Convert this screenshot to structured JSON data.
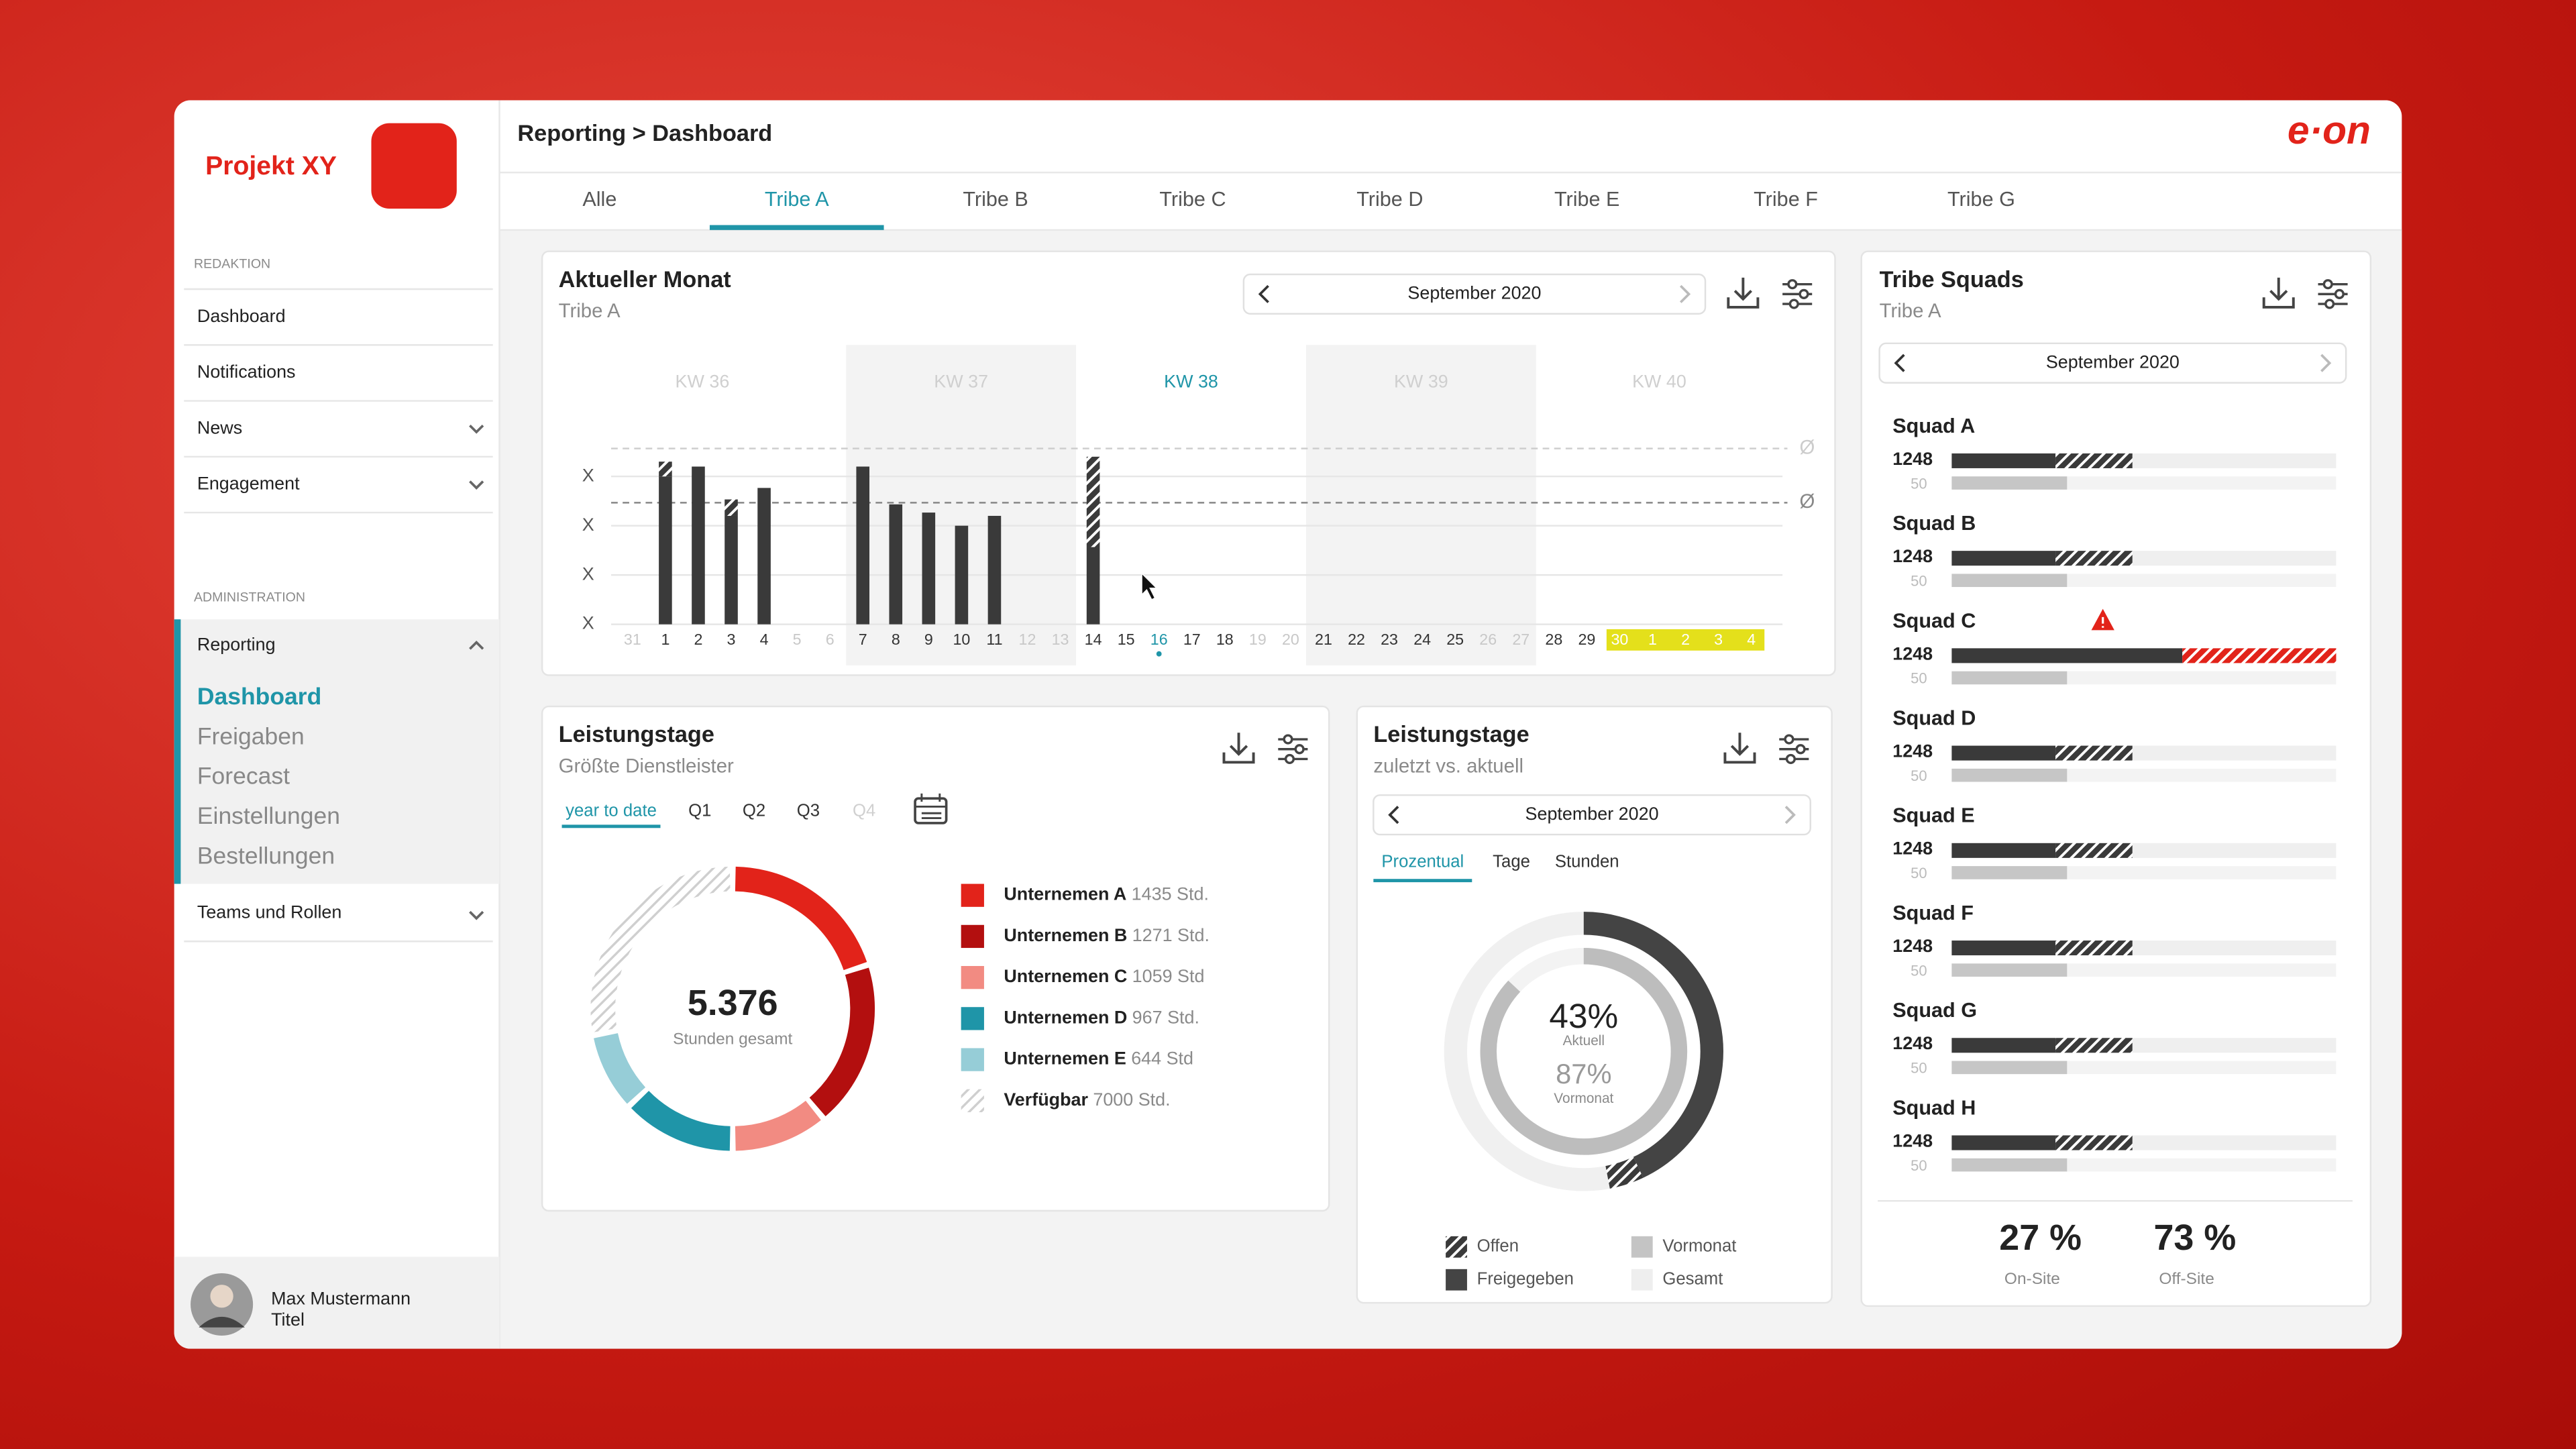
{
  "sidebar": {
    "project": "Projekt XY",
    "redaktion": {
      "heading": "REDAKTION",
      "items": [
        "Dashboard",
        "Notifications",
        "News",
        "Engagement"
      ]
    },
    "administration": {
      "heading": "ADMINISTRATION",
      "item": "Reporting",
      "subitems": [
        "Dashboard",
        "Freigaben",
        "Forecast",
        "Einstellungen",
        "Bestellungen"
      ],
      "next": "Teams und Rollen"
    },
    "user": {
      "name": "Max Mustermann",
      "title": "Titel"
    }
  },
  "header": {
    "breadcrumb": "Reporting > Dashboard",
    "logo": "e·on"
  },
  "tabs": {
    "items": [
      "Alle",
      "Tribe A",
      "Tribe B",
      "Tribe C",
      "Tribe D",
      "Tribe E",
      "Tribe F",
      "Tribe G"
    ],
    "active": 1
  },
  "monthly": {
    "title": "Aktueller Monat",
    "subtitle": "Tribe A",
    "month": "September 2020",
    "weeks": [
      "KW 36",
      "KW 37",
      "KW 38",
      "KW 39",
      "KW 40"
    ],
    "current_week": 2,
    "days": [
      "31",
      "1",
      "2",
      "3",
      "4",
      "5",
      "6",
      "7",
      "8",
      "9",
      "10",
      "11",
      "12",
      "13",
      "14",
      "15",
      "16",
      "17",
      "18",
      "19",
      "20",
      "21",
      "22",
      "23",
      "24",
      "25",
      "26",
      "27",
      "28",
      "29",
      "30",
      "1",
      "2",
      "3",
      "4"
    ],
    "muted_days": [
      0,
      5,
      6,
      12,
      13,
      19,
      20,
      26,
      27
    ],
    "highlighted_days": [
      30,
      31,
      32,
      33,
      34
    ],
    "today": 16,
    "ylim": [
      0,
      110
    ],
    "yticks": [
      {
        "value": 0,
        "label": "X"
      },
      {
        "value": 30,
        "label": "X"
      },
      {
        "value": 60,
        "label": "X"
      },
      {
        "value": 90,
        "label": "X"
      }
    ],
    "reference_lines": [
      {
        "value": 74,
        "label": "Ø"
      },
      {
        "value": 107,
        "label": "Ø"
      }
    ],
    "solid": [
      null,
      90,
      96,
      66,
      83,
      null,
      null,
      96,
      73,
      68,
      60,
      66,
      null,
      null,
      47,
      null,
      null,
      null,
      null,
      null,
      null,
      null,
      null,
      null,
      null,
      null,
      null,
      null,
      null,
      null,
      null,
      null,
      null,
      null,
      null
    ],
    "open": [
      null,
      9,
      null,
      10,
      null,
      null,
      null,
      null,
      null,
      null,
      null,
      null,
      null,
      null,
      55,
      null,
      null,
      null,
      null,
      null,
      null,
      null,
      null,
      null,
      null,
      null,
      null,
      null,
      null,
      null,
      null,
      null,
      null,
      null,
      null
    ]
  },
  "leistungstage_provider": {
    "title": "Leistungstage",
    "subtitle": "Größte Dienstleister",
    "periods": [
      "year to date",
      "Q1",
      "Q2",
      "Q3",
      "Q4"
    ],
    "active_period": 0,
    "disabled_periods": [
      4
    ],
    "total": "5.376",
    "total_label": "Stunden gesamt",
    "segments": [
      {
        "name": "Unternemen A",
        "hours": "1435 Std.",
        "color": "#e2231a",
        "percent": 20
      },
      {
        "name": "Unternemen B",
        "hours": "1271 Std.",
        "color": "#b30f0f",
        "percent": 19
      },
      {
        "name": "Unternemen C",
        "hours": "1059 Std",
        "color": "#f28b82",
        "percent": 11
      },
      {
        "name": "Unternemen D",
        "hours": "967 Std.",
        "color": "#1f95a8",
        "percent": 13
      },
      {
        "name": "Unternemen E",
        "hours": "644 Std",
        "color": "#96cdd7",
        "percent": 9
      },
      {
        "name": "Verfügbar",
        "hours": "7000 Std.",
        "color": "hatch",
        "percent": 28
      }
    ]
  },
  "leistungstage_compare": {
    "title": "Leistungstage",
    "subtitle": "zuletzt vs. aktuell",
    "month": "September 2020",
    "modes": [
      "Prozentual",
      "Tage",
      "Stunden"
    ],
    "active_mode": 0,
    "current": {
      "value": 43,
      "label": "43%"
    },
    "current_label": "Aktuell",
    "open": 4,
    "previous": {
      "value": 87,
      "label": "87%"
    },
    "previous_label": "Vormonat",
    "legend": [
      "Offen",
      "Vormonat",
      "Freigegeben",
      "Gesamt"
    ]
  },
  "squads": {
    "title": "Tribe Squads",
    "subtitle": "Tribe A",
    "month": "September 2020",
    "xlim": [
      0,
      100
    ],
    "items": [
      {
        "name": "Squad A",
        "value_label": "1248",
        "base_label": "50",
        "done": 27,
        "open": 20,
        "previous": 30,
        "alert": false
      },
      {
        "name": "Squad B",
        "value_label": "1248",
        "base_label": "50",
        "done": 27,
        "open": 20,
        "previous": 30,
        "alert": false
      },
      {
        "name": "Squad C",
        "value_label": "1248",
        "base_label": "50",
        "done": 60,
        "open": 40,
        "previous": 30,
        "alert": true
      },
      {
        "name": "Squad D",
        "value_label": "1248",
        "base_label": "50",
        "done": 27,
        "open": 20,
        "previous": 30,
        "alert": false
      },
      {
        "name": "Squad E",
        "value_label": "1248",
        "base_label": "50",
        "done": 27,
        "open": 20,
        "previous": 30,
        "alert": false
      },
      {
        "name": "Squad F",
        "value_label": "1248",
        "base_label": "50",
        "done": 27,
        "open": 20,
        "previous": 30,
        "alert": false
      },
      {
        "name": "Squad G",
        "value_label": "1248",
        "base_label": "50",
        "done": 27,
        "open": 20,
        "previous": 30,
        "alert": false
      },
      {
        "name": "Squad H",
        "value_label": "1248",
        "base_label": "50",
        "done": 27,
        "open": 20,
        "previous": 30,
        "alert": false
      }
    ],
    "summary": [
      {
        "value": "27 %",
        "label": "On-Site"
      },
      {
        "value": "73 %",
        "label": "Off-Site"
      }
    ]
  }
}
